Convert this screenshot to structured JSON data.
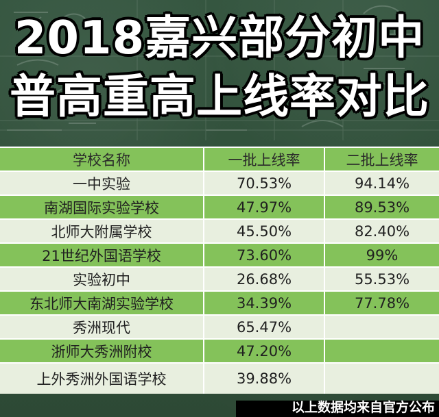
{
  "title": {
    "line1": "2018嘉兴部分初中",
    "line2": "普高重高上线率对比"
  },
  "table": {
    "headers": [
      "学校名称",
      "一批上线率",
      "二批上线率"
    ],
    "rows": [
      {
        "school": "一中实验",
        "first": "70.53%",
        "second": "94.14%"
      },
      {
        "school": "南湖国际实验学校",
        "first": "47.97%",
        "second": "89.53%"
      },
      {
        "school": "北师大附属学校",
        "first": "45.50%",
        "second": "82.40%"
      },
      {
        "school": "21世纪外国语学校",
        "first": "73.60%",
        "second": "99%"
      },
      {
        "school": "实验初中",
        "first": "26.68%",
        "second": "55.53%"
      },
      {
        "school": "东北师大南湖实验学校",
        "first": "34.39%",
        "second": "77.78%"
      },
      {
        "school": "秀洲现代",
        "first": "65.47%",
        "second": ""
      },
      {
        "school": "浙师大秀洲附校",
        "first": "47.20%",
        "second": ""
      },
      {
        "school": "上外秀洲外国语学校",
        "first": "39.88%",
        "second": ""
      }
    ]
  },
  "footer": {
    "text": "以上数据均来自官方公布"
  },
  "colors": {
    "board": "#2f4a37",
    "green_row": "#84c25a",
    "light_row": "#e8efdf"
  }
}
